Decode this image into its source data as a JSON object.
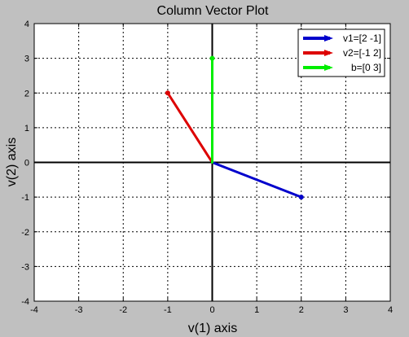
{
  "chart_data": {
    "type": "vector",
    "title": "Column Vector Plot",
    "xlabel": "v(1) axis",
    "ylabel": "v(2) axis",
    "xlim": [
      -4,
      4
    ],
    "ylim": [
      -4,
      4
    ],
    "xticks": [
      -4,
      -3,
      -2,
      -1,
      0,
      1,
      2,
      3,
      4
    ],
    "yticks": [
      -4,
      -3,
      -2,
      -1,
      0,
      1,
      2,
      3,
      4
    ],
    "grid": true,
    "legend_position": "top-right",
    "series": [
      {
        "name": "v1=[2 -1]",
        "x": 2,
        "y": -1,
        "color": "#0000cc"
      },
      {
        "name": "v2=[-1 2]",
        "x": -1,
        "y": 2,
        "color": "#dd0000"
      },
      {
        "name": "b=[0 3]",
        "x": 0,
        "y": 3,
        "color": "#00ee00"
      }
    ]
  }
}
